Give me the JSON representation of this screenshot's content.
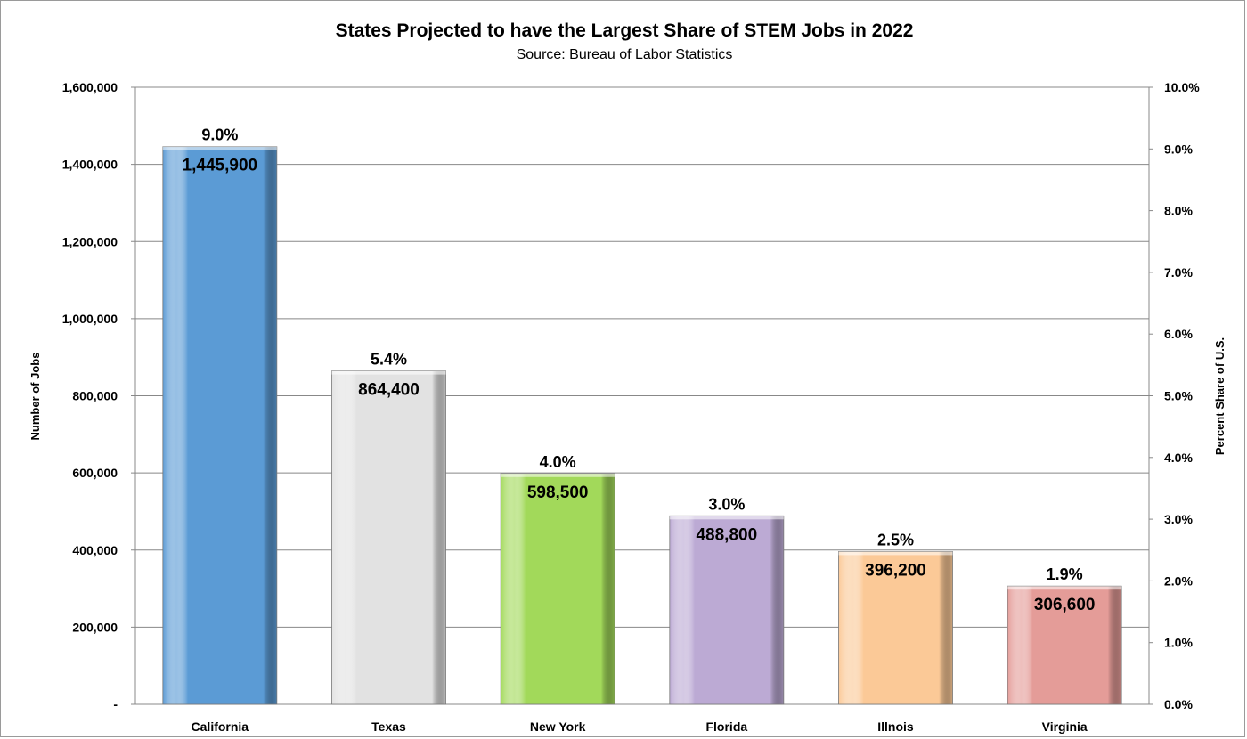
{
  "chart_data": {
    "type": "bar",
    "title": "States  Projected  to have the Largest Share of STEM Jobs in 2022",
    "subtitle": "Source:  Bureau of Labor Statistics",
    "categories": [
      "California",
      "Texas",
      "New York",
      "Florida",
      "Illnois",
      "Virginia"
    ],
    "series": [
      {
        "values": [
          1445900,
          864400,
          598500,
          488800,
          396200,
          306600
        ]
      }
    ],
    "value_labels": [
      "1,445,900",
      "864,400",
      "598,500",
      "488,800",
      "396,200",
      "306,600"
    ],
    "percent_share": [
      9.0,
      5.4,
      4.0,
      3.0,
      2.5,
      1.9
    ],
    "percent_labels": [
      "9.0%",
      "5.4%",
      "4.0%",
      "3.0%",
      "2.5%",
      "1.9%"
    ],
    "bar_colors": [
      "#5b9bd5",
      "#e2e2e2",
      "#a2d95a",
      "#bcaad4",
      "#fbc997",
      "#e49c98"
    ],
    "ylabel": "Number of Jobs",
    "y2label": "Percent Share of U.S.",
    "ylim": [
      0,
      1600000
    ],
    "y2lim": [
      0,
      10
    ],
    "yticks": [
      "-",
      "200,000",
      "400,000",
      "600,000",
      "800,000",
      "1,000,000",
      "1,200,000",
      "1,400,000",
      "1,600,000"
    ],
    "y2ticks": [
      "0.0%",
      "1.0%",
      "2.0%",
      "3.0%",
      "4.0%",
      "5.0%",
      "6.0%",
      "7.0%",
      "8.0%",
      "9.0%",
      "10.0%"
    ],
    "grid": true
  }
}
